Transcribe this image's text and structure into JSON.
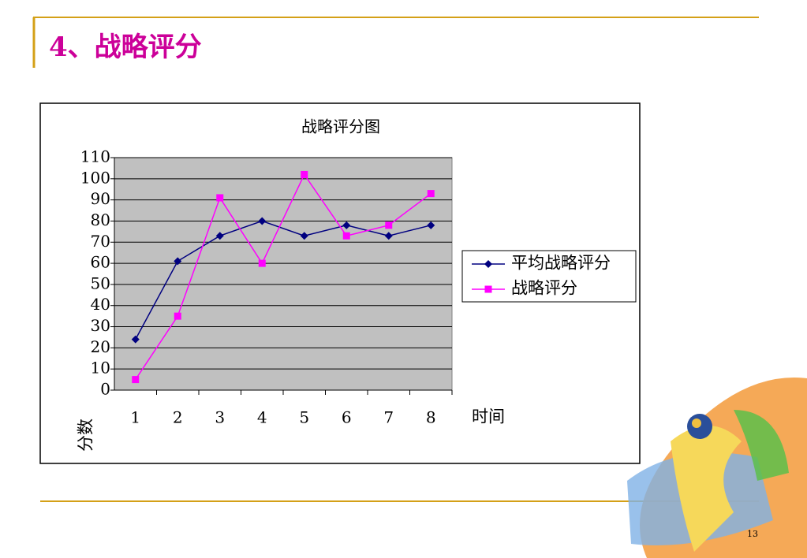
{
  "slide_title": "4、战略评分",
  "page_number": "13",
  "chart_data": {
    "type": "line",
    "title": "战略评分图",
    "x_label": "时间",
    "y_label": "分数",
    "categories": [
      "1",
      "2",
      "3",
      "4",
      "5",
      "6",
      "7",
      "8"
    ],
    "series": [
      {
        "name": "平均战略评分",
        "color": "#000080",
        "marker": "diamond",
        "values": [
          24,
          61,
          73,
          80,
          73,
          78,
          73,
          78
        ]
      },
      {
        "name": "战略评分",
        "color": "#ff00ff",
        "marker": "square",
        "values": [
          5,
          35,
          91,
          60,
          102,
          73,
          78,
          93
        ]
      }
    ],
    "ylim": [
      0,
      110
    ],
    "yticks": [
      0,
      10,
      20,
      30,
      40,
      50,
      60,
      70,
      80,
      90,
      100,
      110
    ],
    "grid": true,
    "plot_background": "#c0c0c0",
    "legend": "right"
  }
}
